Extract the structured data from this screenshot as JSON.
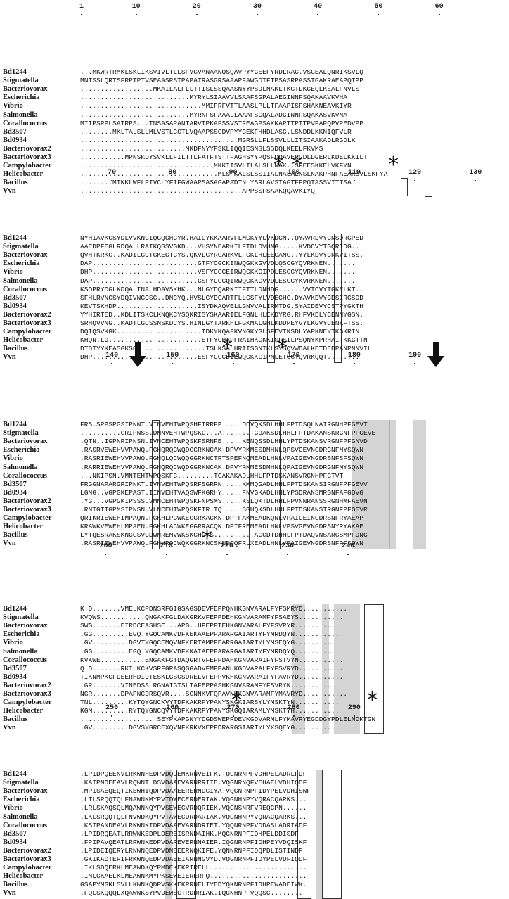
{
  "blocks": [
    {
      "numbers": [
        {
          "pos": 1,
          "text": "1"
        },
        {
          "pos": 10,
          "text": "10"
        },
        {
          "pos": 20,
          "text": "20"
        },
        {
          "pos": 30,
          "text": "30"
        },
        {
          "pos": 40,
          "text": "40"
        },
        {
          "pos": 50,
          "text": "50"
        },
        {
          "pos": 60,
          "text": "60"
        }
      ],
      "stars": [],
      "arrows": [],
      "rows": [
        {
          "label": "Bd1244",
          "seq": "...MKWRTRMKLSKLIKSVIVLTLLSFVGVANAANQSQAVPYYGEEFYRDLRAG.VSGEALQNRIKSVLQ"
        },
        {
          "label": "Stigmatella",
          "seq": "MNTSSLQRTSFRPTPTVSEAASRSTPAPATRASGRSAAAPFAWGDTFTPSASRPASSTGAKRAEAPQTPP"
        },
        {
          "label": "Bacteriovorax",
          "seq": "..................MKAILALFLLTTISLSSQAASNYYPSDLNAKLTKGTLKGEQLKEALFNVLS"
        },
        {
          "label": "Escherichia",
          "seq": "...........................MYRYLSIAAVVLSAAFSGPALAEGINNFSQAKAAVKVHA"
        },
        {
          "label": "Vibrio",
          "seq": "..............................MMIFRFVTTLAASLPLLTFAAPISFSHAKNEAVKIYR"
        },
        {
          "label": "Salmonella",
          "seq": "...........................MYRNFSFAAALLAAAFSGQALADGINNFSQAKASVKVNA"
        },
        {
          "label": "Corallococcus",
          "seq": "MIIPSRPLSATRPS...TNSASAPANTARVTPKAFSSVSTFEAGPSAKKAPTTPTTPVPAPQPVPEDVPP"
        },
        {
          "label": "Bd3507",
          "seq": "........MKLTALSLLMLVSTLCCTLVQAAPSSGDVPYYGEKFHHDLASG.LSNDDLKKNIQFVLR"
        },
        {
          "label": "Bd0934",
          "seq": ".......................................MGRSLLFLSSVLLLITSIAAKADLRGDLK"
        },
        {
          "label": "Bacteriovorax2",
          "seq": "..........................MKDFNYYPSKLIQQIESNSLSSDQLKEELFKVMS"
        },
        {
          "label": "Bacteriovorax3",
          "seq": "...........MPNSKDYSVKLLFILTTLFATFTSTTFAGHSYYPQSFQDAVERGDLDGERLKDELKKILT"
        },
        {
          "label": "Campylobacter",
          "seq": ".................................MKKIISVLILALSLLNAK..SFEESKKELVKFYN"
        },
        {
          "label": "Helicobacter",
          "seq": "..................................MLSFKALSLSSIIALNALALNSLNAKPHNFAEAKSVLSKFYA"
        },
        {
          "label": "Bacillus",
          "seq": "........MTKKLWFLPIVCLYFIFGWAAPSASAGAPADTNLYSRLAVSTAGTFFPQTASSVITTSA"
        },
        {
          "label": "Vvn",
          "seq": "........................................APPSSFSAAKQQAVKIYQ"
        }
      ]
    },
    {
      "numbers": [
        {
          "pos": 70,
          "text": "70"
        },
        {
          "pos": 80,
          "text": "80"
        },
        {
          "pos": 90,
          "text": "90"
        },
        {
          "pos": 100,
          "text": "100"
        },
        {
          "pos": 110,
          "text": "110"
        },
        {
          "pos": 120,
          "text": "120"
        },
        {
          "pos": 130,
          "text": "130"
        }
      ],
      "stars": [
        "*",
        "*",
        "*"
      ],
      "arrows": [],
      "rows": [
        {
          "label": "Bd1244",
          "seq": "NYHIAVKGSYDLVVKNCIQGQGHCYR.HAIGYKKAARVFLMGKYYLVKDGN..QYAVRDVYCNSDRGPED"
        },
        {
          "label": "Stigmatella",
          "seq": "AAEDPFEGLRDQALLRAIKQSSVGKD...VHSYNEARKILFTDLDVHNG.....KVDCVYTGQRIDG.."
        },
        {
          "label": "Bacteriovorax",
          "seq": "QVHTKRKG..KADILGCTGKEGTCYS.QKVLGYRGARKVLFGKLHLEEGANG..YYLKDVYCRKVITSS."
        },
        {
          "label": "Escherichia",
          "seq": "DAP..........................GTFYCGCKINWQGKKGVVDLQSCGYQVRKNEN......."
        },
        {
          "label": "Vibrio",
          "seq": "DHP..........................VSFYCGCEIRWQGKKGIPDLESCGYQVRKNEN......."
        },
        {
          "label": "Salmonella",
          "seq": "DAP..........................GSFYCGCQIRWQGKKGVVDLESCGYKVRKNEN......."
        },
        {
          "label": "Corallococcus",
          "seq": "KSDPRYDGLKDQALINALHDAVSKHK...NLGYDQARKIIFTTLDNHDG......VVTCVYTGKELKT.."
        },
        {
          "label": "Bd3507",
          "seq": "SFHLRVNGSYDQIVNGCSG..DNCYQ.HVSLGYDGARTFLLGSFYLVDEGHG.DYAVKDVYCDSIRGSDD"
        },
        {
          "label": "Bd0934",
          "seq": "KEVTSKHDP....................ISYDKAQVELLGNVVALIRMTDG.SYAIDEVYCSTPYGKTH"
        },
        {
          "label": "Bacteriovorax2",
          "seq": "YYHIRTED..KDLITSKCLKNQKCYSQKRISYSKAARIELFGNLHLEKDYRG.RHFVKDLYCENNYGSN."
        },
        {
          "label": "Bacteriovorax3",
          "seq": "SRHQVVNG..KADTLGCSSNSKDCYS.HINLGYTARKHLFGKMALGHLKDDPEYVYLKGVYCENKFTSS."
        },
        {
          "label": "Campylobacter",
          "seq": "DQIQSVKGK.....................IDKYKQAFKVNGKYGLSFEVTKSDLYAPKNEYTKGKRIN"
        },
        {
          "label": "Helicobacter",
          "seq": "KHQN.LD.......................ETFYCHAPFRAIHKGKKISFEILPSQNYKPRHAITKKGTTN"
        },
        {
          "label": "Bacillus",
          "seq": "DTDTYYKEASGKSG.................TSLKSALHRIISGNTKLSYSQVWDALKETDEDPANPNNVIL"
        },
        {
          "label": "Vvn",
          "seq": "DHP..........................ESFYCGCDIEWQGKKGIPNLETCGYQVRKQQT........"
        }
      ]
    },
    {
      "numbers": [
        {
          "pos": 140,
          "text": "140"
        },
        {
          "pos": 150,
          "text": "150"
        },
        {
          "pos": 160,
          "text": "160"
        },
        {
          "pos": 170,
          "text": "170"
        },
        {
          "pos": 180,
          "text": "180"
        },
        {
          "pos": 190,
          "text": "190"
        }
      ],
      "stars": [
        "*",
        "*"
      ],
      "arrows": [
        "arrow",
        "arrow"
      ],
      "rows": [
        {
          "label": "Bd1244",
          "seq": "FRS.SPPSPGSIPNNT.VINVEHTWPQSHFTRRFP.....DDVQKSDLHHLFPTDSQLNAIRGNHPFGEVT"
        },
        {
          "label": "Stigmatella",
          "seq": "..........GRIPNSS.DMNVEHTWPQSKG...A.......TGDAKSDLHHLFPTDAKANSKRGNFPFGEVE"
        },
        {
          "label": "Bacteriovorax",
          "seq": ".QTN..IGPNRIPNSN.IVNCEHTWPQSKFSRNFE.....KENQSSDLHHLYPTDSKANSVRGNFPFGNVD"
        },
        {
          "label": "Escherichia",
          "seq": ".RASRVEWEHVVPAWQ.FGHQRQCWQDGGRKNCAK.DPVYRKMESDMHNLQPSVGEVNGDRGNFMYSQWN"
        },
        {
          "label": "Vibrio",
          "seq": ".RASRIEWEHVVPAWQ.FGHQLQCWQQGGRKNCTRTSPEFNQMEADLHNLVPAIGEVNGDRSNFSFSQWN"
        },
        {
          "label": "Salmonella",
          "seq": ".RARRIEWEHVVPAWQ.FGHQRQCWQDGGRKNCAK.DPVYRKMESDMHNLQPAIGEVNGDRGNFMYSQWN"
        },
        {
          "label": "Corallococcus",
          "seq": "...NKIPSN.VMNTEHTWPQSKFG.........TGAKAKADLHHLFPTDSKANSVRGNHPFGTVT"
        },
        {
          "label": "Bd3507",
          "seq": "FRGGNAPARGRIPNKT.IVNVEHTWPQSRFSGRRN.....KMMQGADLHHLFPTDSKANSIRGNFPFGEVV"
        },
        {
          "label": "Bd0934",
          "seq": "LGNG..VGPGKEPAST.IINVEHTVAQSWFKGRHY.....FNVGKADLHHLYPSDRANSMRGNFAFGDVG"
        },
        {
          "label": "Bacteriovorax2",
          "seq": ".YG...VGPGKIPSSS.VMNCEHTWPQSKFNPSMS.....KSLQKTDLHHLFPVNNRANSSRGNHMFAEVN"
        },
        {
          "label": "Bacteriovorax3",
          "seq": ".RNTGTIGPMSIPNSN.VLNCEHTWPQSKFTR.TQ.....SGHQKSDLHHLFPTDSKANSTRGNFPFGEVR"
        },
        {
          "label": "Campylobacter",
          "seq": "QRIKRIEWEHIMPAQN.FGKHLPCWKEGGRKACKN.DPTFAKMEADKQNLVPAIGEINGDRSNFRYAEAP"
        },
        {
          "label": "Helicobacter",
          "seq": "KRAWKVEWEHLMPAEN.FGKHLACWKEGGRRACQK.DPIFREMEADLHNLVPSVGEVNGDRSNYRYAKAE"
        },
        {
          "label": "Bacillus",
          "seq": "LYTQESRAKSKNGGSVGDWNREMVWKSKGHGTS..........AGGDTDHHLFPTDAQVNSARGSMPFDNG"
        },
        {
          "label": "Vvn",
          "seq": ".RASRIEWEHVVPAWQ.FGHHRQCWQKGGRKNCSKNDQQFRLXEADLHNLVPAIGEVNGDRSNFRFSQWN"
        }
      ]
    },
    {
      "numbers": [
        {
          "pos": 200,
          "text": "200"
        },
        {
          "pos": 210,
          "text": "210"
        },
        {
          "pos": 220,
          "text": "220"
        },
        {
          "pos": 230,
          "text": "230"
        },
        {
          "pos": 240,
          "text": "240"
        }
      ],
      "stars": [
        "*"
      ],
      "arrows": [],
      "rows": [
        {
          "label": "Bd1244",
          "seq": "K.D.......VMELKCPDNSRFGIGSAGSDEVFEPPQNHKGNVARALFYFSMRYD..........."
        },
        {
          "label": "Stigmatella",
          "seq": "KVQWS...........QNGAKFGLDAKGRKVFEPPDEHKGNVARAMFYFSAEYS..........."
        },
        {
          "label": "Bacteriovorax",
          "seq": "SWG.......EIRDCEASHSE...APG..HFEPPTEHKGNVARALFYFSVRYR..........."
        },
        {
          "label": "Escherichia",
          "seq": ".GG.........EGQ.YGQCAMKVDFKEKAAEPPARARGAIARTYFYMRDQYN..........."
        },
        {
          "label": "Vibrio",
          "seq": ".GV.........DGVTYGQCEMQVNFKERTAMPPEARRGAIARTYLYMSEQYG..........."
        },
        {
          "label": "Salmonella",
          "seq": ".GG.........EGQ.YGQCAMKVDFKKAIAEPPARARGAIARTYFYMRDQYQ..........."
        },
        {
          "label": "Corallococcus",
          "seq": "KVKWE...........ENGAKFGTDAQGRTVFEPPDAHKGNVARAIFYFSTVYN..........."
        },
        {
          "label": "Bd3507",
          "seq": "Q.D.......RKILKCKVSRFGRASQGGADVFMPPANHKGDVARALFYFSVRYD..........."
        },
        {
          "label": "Bd0934",
          "seq": "TIKNMPKCFDEERHDIDTESKLGSGSDRELVFEPPVKHKGNVARAIFYFAVRYD..........."
        },
        {
          "label": "Bacteriovorax2",
          "seq": ".GR.......VINEDSSLRGNAIGTSLTAFEPPASHKGNVARAMFYFSVRYK..........."
        },
        {
          "label": "Bacteriovorax3",
          "seq": "NGR.......DPAPNCDRSQVR....SGNNKVFQPAVNHKGNVARAMFYMAVRYD..........."
        },
        {
          "label": "Campylobacter",
          "seq": "TNL.........KYTQYGNCKVYTDFKAKRFYPANYSKGKIARSYLYMSKTYN..........."
        },
        {
          "label": "Helicobacter",
          "seq": "KGM.........RYTQYGNCQVYTDFKAKRFYPANYSKGQIARAMLYMSKTYH..........."
        },
        {
          "label": "Bacillus",
          "seq": "...................SEYPKAPGNYYDGDSWEPRDEVKGDVARMLFYMAVRYEGDDGYPDLELNDKTGN"
        },
        {
          "label": "Vvn",
          "seq": ".GV.........DGVSYGRCEXQVNFKRKVXEPPDRARGSIARTYLYXSQEYG..........."
        }
      ]
    },
    {
      "numbers": [
        {
          "pos": 250,
          "text": "250"
        },
        {
          "pos": 260,
          "text": "260"
        },
        {
          "pos": 270,
          "text": "270"
        },
        {
          "pos": 280,
          "text": "280"
        },
        {
          "pos": 290,
          "text": "290"
        }
      ],
      "stars": [
        "*",
        "*"
      ],
      "arrows": [],
      "rows": [
        {
          "label": "Bd1244",
          "seq": ".LPIDPQEENVLRKWNHEDPVDQDEMKRNVEIFK.TQGNRNPFVDHPELADRLFDF"
        },
        {
          "label": "Stigmatella",
          "seq": ".KAIPNDEEAVLRQWNTLDSVDAAEVARNRRIIE.VQGNRNQFVEHAELVDHIQDF"
        },
        {
          "label": "Bacteriovorax",
          "seq": ".MPISAEQEQTIKEWHIQDPVDAAEERERNDGIYA.VQGNRNPFIDYPELVDHISNF"
        },
        {
          "label": "Escherichia",
          "seq": ".LTLSRQQTQLFNAWNKMYPVTDWECERDERIAK.VQGNHNPYVQRACQARKS..."
        },
        {
          "label": "Vibrio",
          "seq": ".LRLSKAQSQLMQAWNNQYPVSEWECVRDQRIEK.VQGNSNRFVREQCPN......"
        },
        {
          "label": "Salmonella",
          "seq": ".LKLSRQQTQLFNVWDKQYPVTAWECDRDARIAK.VQGNHNPYVQRACQARKS..."
        },
        {
          "label": "Corallococcus",
          "seq": ".KSIPANDEAVLRKWNKIDPVDAAEVARNDRIET.YQQNRNPFVDDASLADRIADF"
        },
        {
          "label": "Bd3507",
          "seq": ".LPIDRQEATLRRWNKEDPLDEREISRNDAIHK.MQGNRNPFIDHPELDDISDF"
        },
        {
          "label": "Bd0934",
          "seq": ".FPIPAVQEATLRRWNKEDPVDAREVERNNAIER.IQGNRNPFIDHPEYVDQISKF"
        },
        {
          "label": "Bacteriovorax2",
          "seq": ".LPIDEIQERYLRNWNQEDPVDNEEERNQKIFE.YQNNRNPFIDQPDLISTINDF"
        },
        {
          "label": "Bacteriovorax3",
          "seq": ".GKIKADTERIFRKWNQEDPVDAEEIARNNGVYD.VQGNRNPFIDYPELVDFIQDF"
        },
        {
          "label": "Campylobacter",
          "seq": ".IKLSDQERKLMEAWDKQYPMDEKEKRIRELL........................"
        },
        {
          "label": "Helicobacter",
          "seq": ".INLGKAELKLMEAWNKMYPKSEWEIERERFQ........................"
        },
        {
          "label": "Bacillus",
          "seq": "GSAPYMGKLSVLLKWNKQDPVSKKEKRRNELIYEDYQKNRNPFIDHPEWADEIWK."
        },
        {
          "label": "Vvn",
          "seq": ".FQLSKQQQLXQAWNKSYPVDEWECTRDDRIAK.IQGNHNPFVQQSC........"
        }
      ]
    }
  ]
}
